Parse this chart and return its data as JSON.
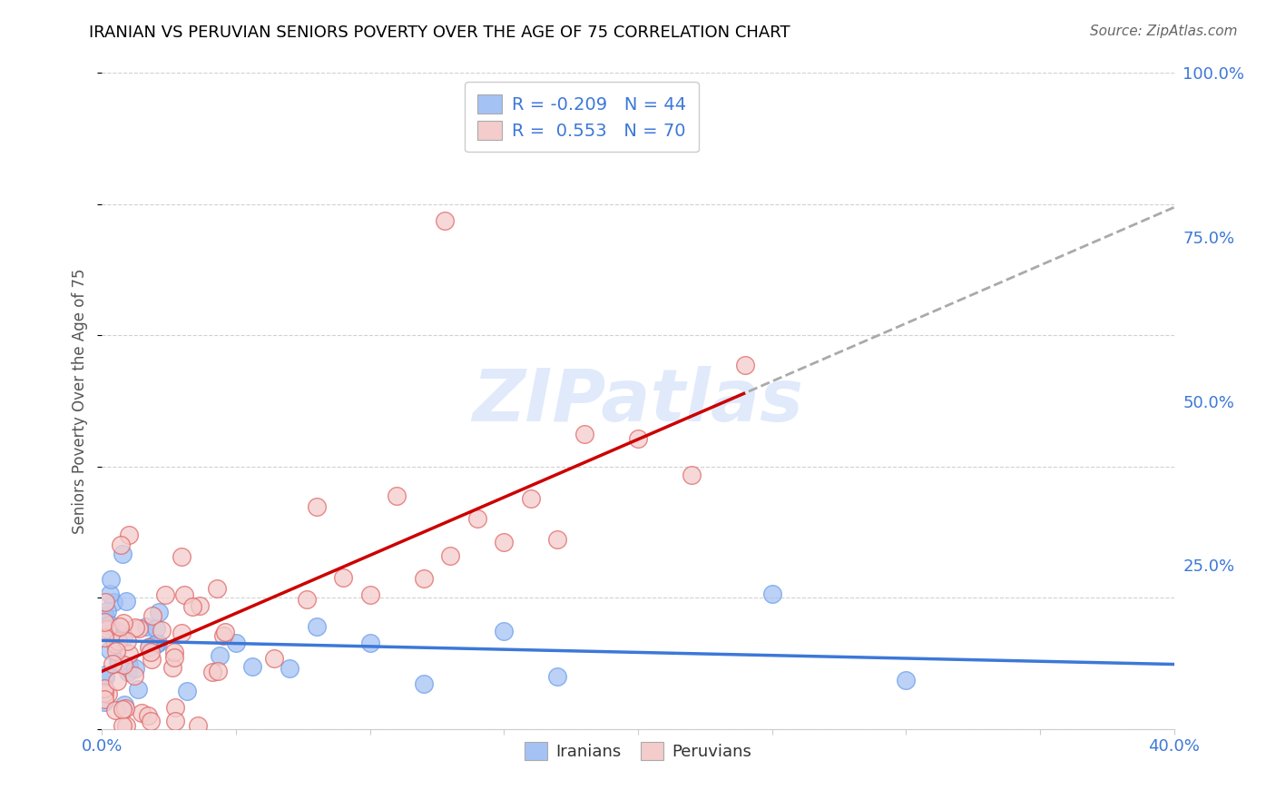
{
  "title": "IRANIAN VS PERUVIAN SENIORS POVERTY OVER THE AGE OF 75 CORRELATION CHART",
  "source": "Source: ZipAtlas.com",
  "ylabel": "Seniors Poverty Over the Age of 75",
  "xlim": [
    0.0,
    0.4
  ],
  "ylim": [
    0.0,
    1.0
  ],
  "blue_color": "#a4c2f4",
  "blue_edge": "#6d9eeb",
  "pink_color": "#f4cccc",
  "pink_edge": "#e06666",
  "trend_blue_color": "#3c78d8",
  "trend_pink_color": "#cc0000",
  "trend_dash_color": "#aaaaaa",
  "R_blue": -0.209,
  "N_blue": 44,
  "R_pink": 0.553,
  "N_pink": 70,
  "watermark_color": "#c9daf8",
  "background_color": "#ffffff",
  "grid_color": "#cccccc",
  "axis_label_color": "#3c78d8",
  "title_color": "#000000",
  "legend_text_color": "#3c78d8",
  "source_color": "#666666"
}
